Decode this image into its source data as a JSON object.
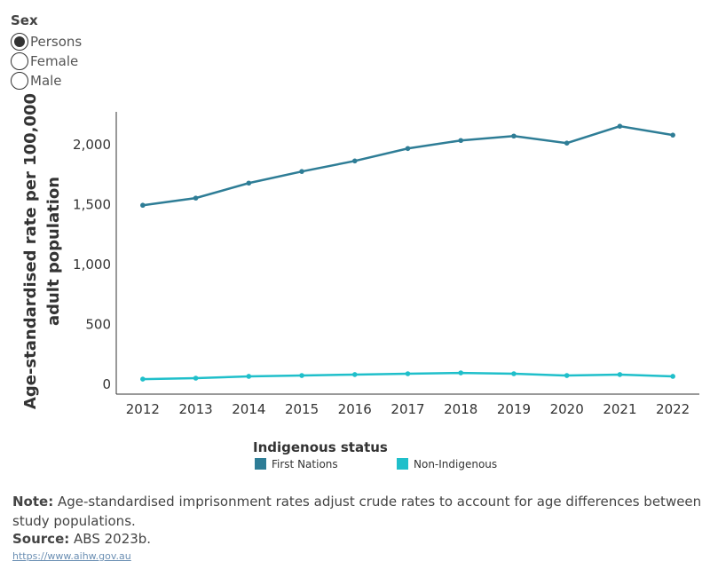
{
  "filter": {
    "label": "Sex",
    "options": [
      "Persons",
      "Female",
      "Male"
    ],
    "selected": 0
  },
  "chart_data": {
    "type": "line",
    "y_label": [
      "Age-standardised rate per 100,000",
      "adult population"
    ],
    "categories": [
      "2012",
      "2013",
      "2014",
      "2015",
      "2016",
      "2017",
      "2018",
      "2019",
      "2020",
      "2021",
      "2022"
    ],
    "series": [
      {
        "name": "First Nations",
        "color": "#2e7d96",
        "values": [
          1570,
          1630,
          1755,
          1852,
          1940,
          2044,
          2111,
          2148,
          2089,
          2230,
          2156
        ]
      },
      {
        "name": "Non-Indigenous",
        "color": "#1fbfca",
        "values": [
          118,
          126,
          141,
          148,
          156,
          163,
          170,
          163,
          148,
          156,
          141
        ]
      }
    ],
    "ylim": [
      0,
      2350
    ],
    "yticks": [
      0,
      500,
      {
        "value": 1000,
        "label": "1,000"
      },
      {
        "value": 1500,
        "label": "1,500"
      },
      {
        "value": 2000,
        "label": "2,000"
      }
    ],
    "legend_title": "Indigenous status"
  },
  "note": {
    "label": "Note:",
    "text": "Age-standardised imprisonment rates adjust crude rates to account for age differences between study populations."
  },
  "source": {
    "label": "Source:",
    "text": "ABS 2023b."
  },
  "url": "https://www.aihw.gov.au"
}
